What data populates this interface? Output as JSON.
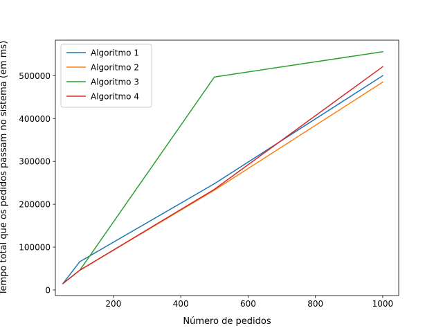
{
  "chart_data": {
    "type": "line",
    "title": "",
    "xlabel": "Número de pedidos",
    "ylabel": "Tempo total que os pedidos passam no sistema (em ms)",
    "xlim": [
      27.5,
      1047.5
    ],
    "ylim": [
      -13000,
      583000
    ],
    "xticks": [
      200,
      400,
      600,
      800,
      1000
    ],
    "yticks": [
      0,
      100000,
      200000,
      300000,
      400000,
      500000
    ],
    "grid": false,
    "legend_position": "top-left",
    "x": [
      50,
      100,
      500,
      1000
    ],
    "series": [
      {
        "name": "Algoritmo 1",
        "color": "#1f77b4",
        "values": [
          15000,
          66000,
          248000,
          500000
        ]
      },
      {
        "name": "Algoritmo 2",
        "color": "#ff7f0e",
        "values": [
          15000,
          46000,
          233000,
          485000
        ]
      },
      {
        "name": "Algoritmo 3",
        "color": "#2ca02c",
        "values": [
          15000,
          46000,
          497000,
          556000
        ]
      },
      {
        "name": "Algoritmo 4",
        "color": "#d62728",
        "values": [
          15000,
          46000,
          235000,
          521000
        ]
      }
    ]
  }
}
